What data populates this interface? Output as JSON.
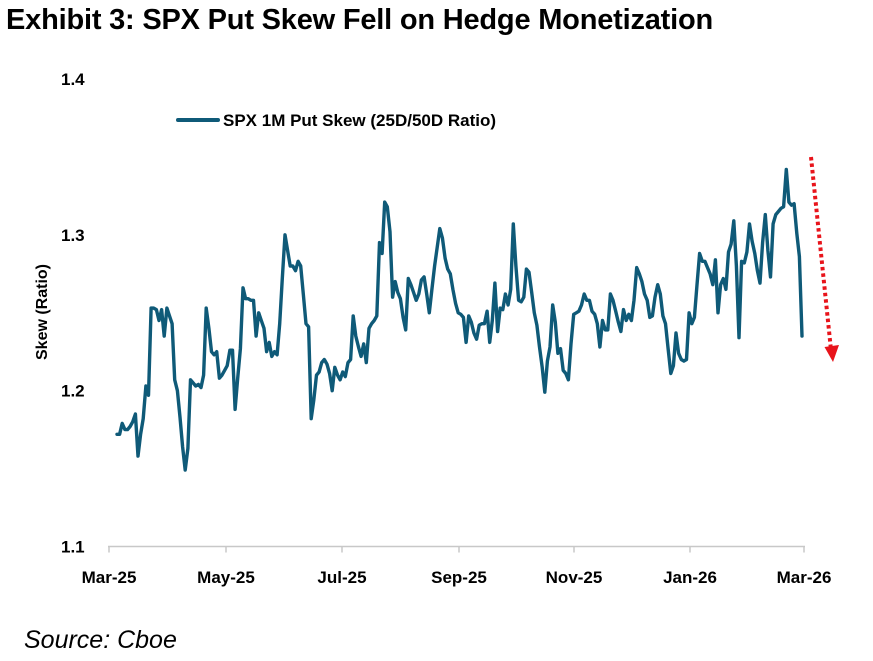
{
  "title": "Exhibit 3: SPX Put Skew Fell on Hedge Monetization",
  "source": "Source: Cboe",
  "colors": {
    "series": "#0f5a78",
    "arrow": "#e8141b",
    "axis": "#c8c8c8"
  },
  "chart_data": {
    "type": "line",
    "title": "Exhibit 3: SPX Put Skew Fell on Hedge Monetization",
    "xlabel": "",
    "ylabel": "Skew (Ratio)",
    "ylim": [
      1.1,
      1.4
    ],
    "yticks": [
      1.1,
      1.2,
      1.3,
      1.4
    ],
    "yticklabels": [
      "1.1",
      "1.2",
      "1.3",
      "1.4"
    ],
    "xticklabels": [
      "Mar-25",
      "May-25",
      "Jul-25",
      "Sep-25",
      "Nov-25",
      "Jan-26",
      "Mar-26"
    ],
    "legend": "top-left",
    "grid": false,
    "annotation": "red dotted down arrow after final point",
    "series": [
      {
        "name": "SPX 1M Put Skew (25D/50D Ratio)",
        "values": [
          1.172,
          1.172,
          1.179,
          1.175,
          1.175,
          1.177,
          1.18,
          1.185,
          1.158,
          1.172,
          1.182,
          1.203,
          1.197,
          1.253,
          1.253,
          1.252,
          1.245,
          1.252,
          1.235,
          1.253,
          1.248,
          1.243,
          1.207,
          1.2,
          1.183,
          1.164,
          1.149,
          1.163,
          1.207,
          1.205,
          1.203,
          1.204,
          1.202,
          1.21,
          1.253,
          1.24,
          1.225,
          1.223,
          1.225,
          1.208,
          1.21,
          1.213,
          1.216,
          1.226,
          1.226,
          1.188,
          1.208,
          1.227,
          1.266,
          1.259,
          1.259,
          1.258,
          1.258,
          1.235,
          1.25,
          1.245,
          1.24,
          1.225,
          1.231,
          1.222,
          1.225,
          1.223,
          1.243,
          1.272,
          1.3,
          1.29,
          1.28,
          1.28,
          1.277,
          1.283,
          1.28,
          1.262,
          1.243,
          1.241,
          1.182,
          1.194,
          1.21,
          1.212,
          1.218,
          1.22,
          1.217,
          1.211,
          1.2,
          1.215,
          1.21,
          1.207,
          1.212,
          1.209,
          1.218,
          1.22,
          1.248,
          1.235,
          1.228,
          1.222,
          1.23,
          1.218,
          1.24,
          1.243,
          1.245,
          1.248,
          1.295,
          1.288,
          1.321,
          1.318,
          1.302,
          1.26,
          1.27,
          1.263,
          1.259,
          1.247,
          1.239,
          1.272,
          1.268,
          1.263,
          1.258,
          1.262,
          1.271,
          1.273,
          1.262,
          1.25,
          1.265,
          1.28,
          1.292,
          1.304,
          1.298,
          1.285,
          1.278,
          1.275,
          1.265,
          1.256,
          1.25,
          1.249,
          1.247,
          1.231,
          1.248,
          1.244,
          1.237,
          1.233,
          1.242,
          1.243,
          1.243,
          1.251,
          1.231,
          1.245,
          1.269,
          1.238,
          1.253,
          1.252,
          1.262,
          1.255,
          1.265,
          1.307,
          1.28,
          1.258,
          1.257,
          1.26,
          1.278,
          1.276,
          1.263,
          1.25,
          1.242,
          1.228,
          1.215,
          1.199,
          1.219,
          1.228,
          1.255,
          1.244,
          1.224,
          1.227,
          1.213,
          1.211,
          1.207,
          1.23,
          1.249,
          1.25,
          1.251,
          1.255,
          1.262,
          1.258,
          1.258,
          1.251,
          1.249,
          1.243,
          1.228,
          1.245,
          1.239,
          1.239,
          1.262,
          1.258,
          1.251,
          1.244,
          1.238,
          1.252,
          1.245,
          1.249,
          1.245,
          1.258,
          1.279,
          1.275,
          1.27,
          1.262,
          1.258,
          1.247,
          1.248,
          1.26,
          1.268,
          1.262,
          1.248,
          1.243,
          1.227,
          1.211,
          1.216,
          1.237,
          1.224,
          1.22,
          1.219,
          1.22,
          1.25,
          1.243,
          1.247,
          1.268,
          1.288,
          1.283,
          1.283,
          1.279,
          1.275,
          1.268,
          1.284,
          1.25,
          1.268,
          1.272,
          1.265,
          1.289,
          1.294,
          1.309,
          1.28,
          1.234,
          1.283,
          1.282,
          1.289,
          1.307,
          1.296,
          1.288,
          1.277,
          1.269,
          1.295,
          1.313,
          1.29,
          1.273,
          1.307,
          1.313,
          1.315,
          1.317,
          1.318,
          1.342,
          1.321,
          1.319,
          1.32,
          1.301,
          1.286,
          1.235
        ]
      }
    ]
  }
}
